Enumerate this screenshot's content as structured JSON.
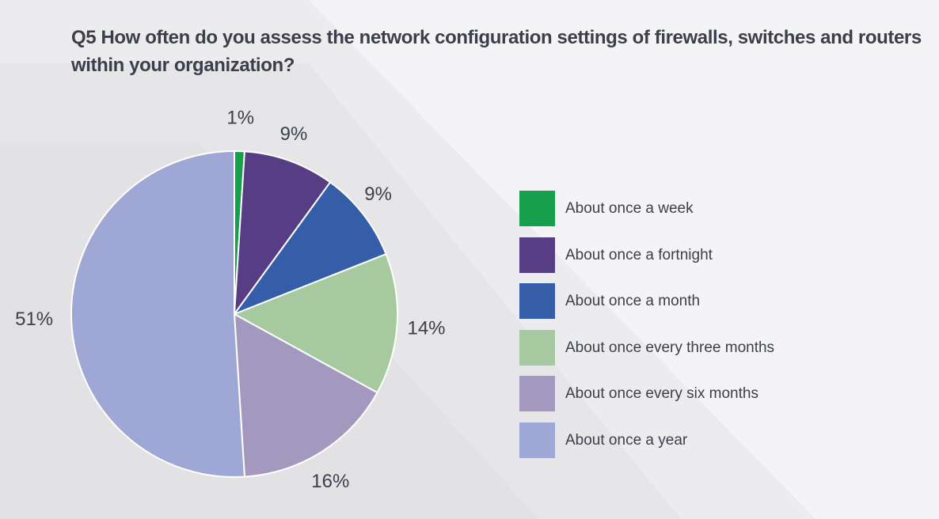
{
  "title": "Q5 How often do you assess the network configuration settings of firewalls, switches and routers within your organization?",
  "chart_data": {
    "type": "pie",
    "title": "Q5 How often do you assess the network configuration settings of firewalls, switches and routers within your organization?",
    "categories": [
      "About once a week",
      "About once a fortnight",
      "About once a month",
      "About once every three months",
      "About once every six months",
      "About once a year"
    ],
    "values": [
      1,
      9,
      9,
      14,
      16,
      51
    ],
    "labels": [
      "1%",
      "9%",
      "9%",
      "14%",
      "16%",
      "51%"
    ],
    "colors": [
      "#16a04c",
      "#573d84",
      "#365da8",
      "#a6c9a0",
      "#a398be",
      "#9fa8d5"
    ],
    "legend_position": "right"
  },
  "legend": [
    {
      "label": "About once a week",
      "color": "#16a04c"
    },
    {
      "label": "About once a fortnight",
      "color": "#573d84"
    },
    {
      "label": "About once a month",
      "color": "#365da8"
    },
    {
      "label": "About once every three months",
      "color": "#a6c9a0"
    },
    {
      "label": "About once every six months",
      "color": "#a398be"
    },
    {
      "label": "About once a year",
      "color": "#9fa8d5"
    }
  ]
}
